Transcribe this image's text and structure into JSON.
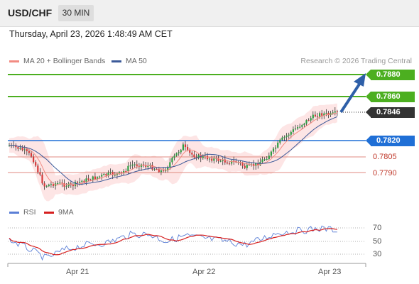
{
  "header": {
    "symbol": "USD/CHF",
    "timeframe": "30 MIN"
  },
  "datetime": "Thursday, April 23, 2026 1:48:49 AM CET",
  "legend": {
    "ma20": "MA 20 + Bollinger Bands",
    "ma50": "MA 50",
    "ma20_color": "#f28b82",
    "ma50_color": "#3c5a99"
  },
  "copyright": "Research © 2026 Trading Central",
  "levels": [
    {
      "label": "0.7880",
      "color": "#4caf20",
      "style": "tag"
    },
    {
      "label": "0.7860",
      "color": "#4caf20",
      "style": "tag"
    },
    {
      "label": "0.7846",
      "color": "#333333",
      "style": "tag"
    },
    {
      "label": "0.7820",
      "color": "#1f6fd6",
      "style": "tag"
    },
    {
      "label": "0.7805",
      "color": "#c0392b",
      "style": "plain"
    },
    {
      "label": "0.7790",
      "color": "#c0392b",
      "style": "plain"
    }
  ],
  "rsi_legend": {
    "rsi": "RSI",
    "ma": "9MA",
    "rsi_color": "#5b7fd6",
    "ma_color": "#d61f1f"
  },
  "rsi_levels": [
    "70",
    "50",
    "30"
  ],
  "x_labels": [
    "Apr 21",
    "Apr 22",
    "Apr 23"
  ]
}
